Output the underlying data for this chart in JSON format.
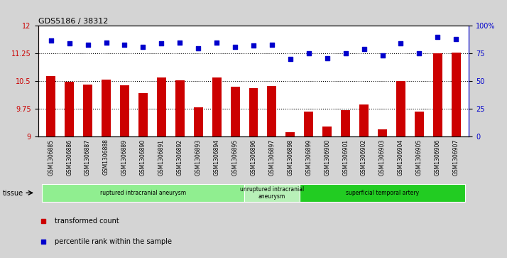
{
  "title": "GDS5186 / 38312",
  "samples": [
    "GSM1306885",
    "GSM1306886",
    "GSM1306887",
    "GSM1306888",
    "GSM1306889",
    "GSM1306890",
    "GSM1306891",
    "GSM1306892",
    "GSM1306893",
    "GSM1306894",
    "GSM1306895",
    "GSM1306896",
    "GSM1306897",
    "GSM1306898",
    "GSM1306899",
    "GSM1306900",
    "GSM1306901",
    "GSM1306902",
    "GSM1306903",
    "GSM1306904",
    "GSM1306905",
    "GSM1306906",
    "GSM1306907"
  ],
  "bar_values": [
    10.65,
    10.48,
    10.42,
    10.55,
    10.4,
    10.18,
    10.6,
    10.52,
    9.8,
    10.6,
    10.35,
    10.32,
    10.38,
    9.12,
    9.68,
    9.27,
    9.72,
    9.88,
    9.2,
    10.5,
    9.68,
    11.25,
    11.28
  ],
  "dot_values": [
    87,
    84,
    83,
    85,
    83,
    81,
    84,
    85,
    80,
    85,
    81,
    82,
    83,
    70,
    75,
    71,
    75,
    79,
    73,
    84,
    75,
    90,
    88
  ],
  "ylim_left": [
    9,
    12
  ],
  "ylim_right": [
    0,
    100
  ],
  "yticks_left": [
    9,
    9.75,
    10.5,
    11.25,
    12
  ],
  "yticks_right": [
    0,
    25,
    50,
    75,
    100
  ],
  "ytick_labels_left": [
    "9",
    "9.75",
    "10.5",
    "11.25",
    "12"
  ],
  "ytick_labels_right": [
    "0",
    "25",
    "50",
    "75",
    "100%"
  ],
  "bar_color": "#cc0000",
  "dot_color": "#0000cc",
  "bg_color": "#d4d4d4",
  "plot_bg_color": "#ffffff",
  "tissue_groups": [
    {
      "label": "ruptured intracranial aneurysm",
      "start": 0,
      "end": 11,
      "color": "#90ee90"
    },
    {
      "label": "unruptured intracranial\naneurysm",
      "start": 11,
      "end": 14,
      "color": "#b8f0b8"
    },
    {
      "label": "superficial temporal artery",
      "start": 14,
      "end": 23,
      "color": "#22cc22"
    }
  ],
  "tissue_label": "tissue",
  "legend_bar_label": "transformed count",
  "legend_dot_label": "percentile rank within the sample",
  "hline_values": [
    9.75,
    10.5,
    11.25
  ],
  "hline_style": "dotted"
}
